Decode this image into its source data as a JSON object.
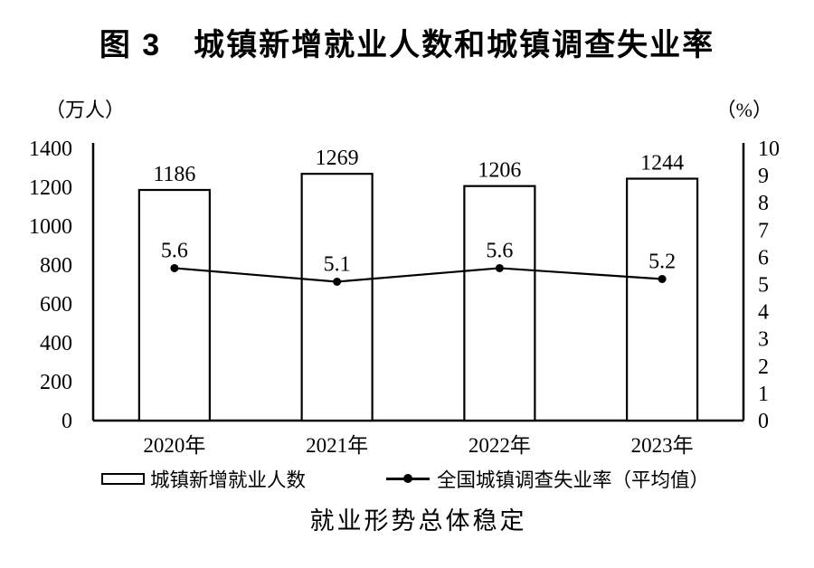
{
  "chart_data": {
    "type": "bar",
    "title": "图 3　城镇新增就业人数和城镇调查失业率",
    "categories": [
      "2020年",
      "2021年",
      "2022年",
      "2023年"
    ],
    "series": [
      {
        "name": "城镇新增就业人数",
        "type": "bar",
        "axis": "left",
        "values": [
          1186,
          1269,
          1206,
          1244
        ]
      },
      {
        "name": "全国城镇调查失业率（平均值）",
        "type": "line",
        "axis": "right",
        "values": [
          5.6,
          5.1,
          5.6,
          5.2
        ]
      }
    ],
    "left_axis": {
      "unit": "（万人）",
      "min": 0,
      "max": 1400,
      "step": 200,
      "ticks": [
        0,
        200,
        400,
        600,
        800,
        1000,
        1200,
        1400
      ]
    },
    "right_axis": {
      "unit": "（%）",
      "min": 0,
      "max": 10,
      "step": 1,
      "ticks": [
        0,
        1,
        2,
        3,
        4,
        5,
        6,
        7,
        8,
        9,
        10
      ]
    },
    "grid": false,
    "legend_position": "bottom"
  },
  "caption": "就业形势总体稳定",
  "colors": {
    "ink": "#000000",
    "background": "#ffffff",
    "bar_fill": "#ffffff"
  }
}
